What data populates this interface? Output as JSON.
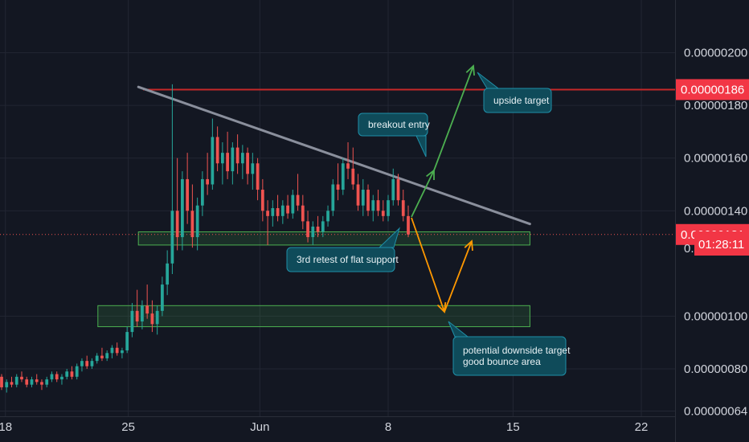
{
  "colors": {
    "background": "#131722",
    "grid": "#222633",
    "axis_text": "#d1d4dc",
    "up_candle": "#26a69a",
    "down_candle": "#ef5350",
    "resistance_line": "#c62828",
    "trendline": "#8a8f9c",
    "support_zone": "#4caf50",
    "bull_arrow": "#4caf50",
    "bear_arrow": "#ff9800",
    "note_bg": "#0f4b5a",
    "note_border": "#1f8fa8",
    "price_tag_red": "#f23645"
  },
  "chart_data": {
    "type": "candlestick",
    "x_ticks": [
      "18",
      "25",
      "Jun",
      "8",
      "15",
      "22"
    ],
    "y_ticks": [
      "0.00000200",
      "0.00000180",
      "0.00000160",
      "0.00000140",
      "0.00000100",
      "0.00000080",
      "0.00000064"
    ],
    "y_tick_values": [
      2.0,
      1.8,
      1.6,
      1.4,
      1.0,
      0.8,
      0.64
    ],
    "y_unit_scale": "1e-6",
    "ylim": [
      0.62,
      2.2
    ],
    "grid": true,
    "price_tags": {
      "resistance": "0.00000186",
      "current": "0.00000131",
      "countdown": "01:28:11",
      "partial_label": "0."
    },
    "resistance_level": 1.86,
    "current_price": 1.31,
    "candles_ohlc": [
      [
        0.77,
        0.78,
        0.72,
        0.73
      ],
      [
        0.73,
        0.76,
        0.71,
        0.75
      ],
      [
        0.75,
        0.77,
        0.73,
        0.74
      ],
      [
        0.74,
        0.78,
        0.73,
        0.77
      ],
      [
        0.77,
        0.79,
        0.75,
        0.76
      ],
      [
        0.76,
        0.77,
        0.73,
        0.74
      ],
      [
        0.74,
        0.77,
        0.73,
        0.76
      ],
      [
        0.76,
        0.78,
        0.74,
        0.75
      ],
      [
        0.75,
        0.76,
        0.72,
        0.74
      ],
      [
        0.74,
        0.77,
        0.73,
        0.76
      ],
      [
        0.76,
        0.79,
        0.75,
        0.78
      ],
      [
        0.78,
        0.79,
        0.75,
        0.76
      ],
      [
        0.76,
        0.78,
        0.74,
        0.77
      ],
      [
        0.77,
        0.8,
        0.76,
        0.79
      ],
      [
        0.79,
        0.81,
        0.76,
        0.77
      ],
      [
        0.77,
        0.82,
        0.76,
        0.81
      ],
      [
        0.81,
        0.84,
        0.79,
        0.83
      ],
      [
        0.83,
        0.85,
        0.8,
        0.81
      ],
      [
        0.81,
        0.84,
        0.8,
        0.83
      ],
      [
        0.83,
        0.86,
        0.82,
        0.85
      ],
      [
        0.85,
        0.88,
        0.83,
        0.84
      ],
      [
        0.84,
        0.87,
        0.83,
        0.86
      ],
      [
        0.86,
        0.89,
        0.84,
        0.88
      ],
      [
        0.88,
        0.9,
        0.85,
        0.86
      ],
      [
        0.86,
        0.88,
        0.84,
        0.87
      ],
      [
        0.87,
        0.96,
        0.86,
        0.94
      ],
      [
        0.94,
        1.05,
        0.92,
        1.02
      ],
      [
        1.02,
        1.1,
        0.96,
        0.98
      ],
      [
        0.98,
        1.06,
        0.95,
        1.04
      ],
      [
        1.04,
        1.12,
        0.99,
        1.01
      ],
      [
        1.01,
        1.06,
        0.94,
        0.97
      ],
      [
        0.97,
        1.04,
        0.93,
        1.02
      ],
      [
        1.02,
        1.15,
        1.0,
        1.12
      ],
      [
        1.12,
        1.25,
        1.08,
        1.2
      ],
      [
        1.2,
        1.88,
        1.16,
        1.4
      ],
      [
        1.4,
        1.6,
        1.25,
        1.3
      ],
      [
        1.3,
        1.55,
        1.25,
        1.52
      ],
      [
        1.52,
        1.62,
        1.35,
        1.4
      ],
      [
        1.4,
        1.5,
        1.26,
        1.3
      ],
      [
        1.3,
        1.45,
        1.25,
        1.42
      ],
      [
        1.42,
        1.55,
        1.38,
        1.52
      ],
      [
        1.52,
        1.62,
        1.46,
        1.5
      ],
      [
        1.5,
        1.75,
        1.48,
        1.68
      ],
      [
        1.68,
        1.72,
        1.55,
        1.58
      ],
      [
        1.58,
        1.66,
        1.5,
        1.62
      ],
      [
        1.62,
        1.7,
        1.52,
        1.55
      ],
      [
        1.55,
        1.66,
        1.5,
        1.64
      ],
      [
        1.64,
        1.69,
        1.54,
        1.58
      ],
      [
        1.58,
        1.65,
        1.52,
        1.62
      ],
      [
        1.62,
        1.64,
        1.5,
        1.54
      ],
      [
        1.54,
        1.62,
        1.48,
        1.58
      ],
      [
        1.58,
        1.6,
        1.44,
        1.48
      ],
      [
        1.48,
        1.52,
        1.36,
        1.4
      ],
      [
        1.4,
        1.44,
        1.27,
        1.38
      ],
      [
        1.38,
        1.44,
        1.34,
        1.41
      ],
      [
        1.41,
        1.46,
        1.36,
        1.38
      ],
      [
        1.38,
        1.44,
        1.35,
        1.42
      ],
      [
        1.42,
        1.46,
        1.37,
        1.39
      ],
      [
        1.39,
        1.48,
        1.37,
        1.46
      ],
      [
        1.46,
        1.54,
        1.4,
        1.42
      ],
      [
        1.42,
        1.46,
        1.33,
        1.36
      ],
      [
        1.36,
        1.4,
        1.28,
        1.3
      ],
      [
        1.3,
        1.36,
        1.27,
        1.34
      ],
      [
        1.34,
        1.38,
        1.3,
        1.32
      ],
      [
        1.32,
        1.38,
        1.3,
        1.36
      ],
      [
        1.36,
        1.42,
        1.34,
        1.4
      ],
      [
        1.4,
        1.52,
        1.38,
        1.5
      ],
      [
        1.5,
        1.58,
        1.44,
        1.48
      ],
      [
        1.48,
        1.6,
        1.46,
        1.58
      ],
      [
        1.58,
        1.66,
        1.52,
        1.56
      ],
      [
        1.56,
        1.64,
        1.48,
        1.5
      ],
      [
        1.5,
        1.54,
        1.4,
        1.42
      ],
      [
        1.42,
        1.52,
        1.38,
        1.48
      ],
      [
        1.48,
        1.5,
        1.38,
        1.4
      ],
      [
        1.4,
        1.46,
        1.36,
        1.44
      ],
      [
        1.44,
        1.48,
        1.38,
        1.4
      ],
      [
        1.4,
        1.44,
        1.36,
        1.38
      ],
      [
        1.38,
        1.46,
        1.36,
        1.44
      ],
      [
        1.44,
        1.56,
        1.42,
        1.52
      ],
      [
        1.52,
        1.54,
        1.42,
        1.44
      ],
      [
        1.44,
        1.48,
        1.36,
        1.38
      ],
      [
        1.38,
        1.42,
        1.3,
        1.31
      ]
    ],
    "zones": [
      {
        "name": "flat-support",
        "from": 1.27,
        "to": 1.32,
        "x_start": 0.205,
        "x_end": 0.785
      },
      {
        "name": "downside-target",
        "from": 0.96,
        "to": 1.04,
        "x_start": 0.145,
        "x_end": 0.785
      }
    ],
    "trendline": {
      "x1": 0.205,
      "y1": 1.87,
      "x2": 0.785,
      "y2": 1.35
    },
    "annotations": [
      {
        "id": "upside",
        "text": [
          "upside target"
        ]
      },
      {
        "id": "breakout",
        "text": [
          "breakout entry"
        ]
      },
      {
        "id": "retest",
        "text": [
          "3rd retest of flat support"
        ]
      },
      {
        "id": "downside",
        "text": [
          "potential downside target",
          "good bounce area"
        ]
      }
    ]
  }
}
